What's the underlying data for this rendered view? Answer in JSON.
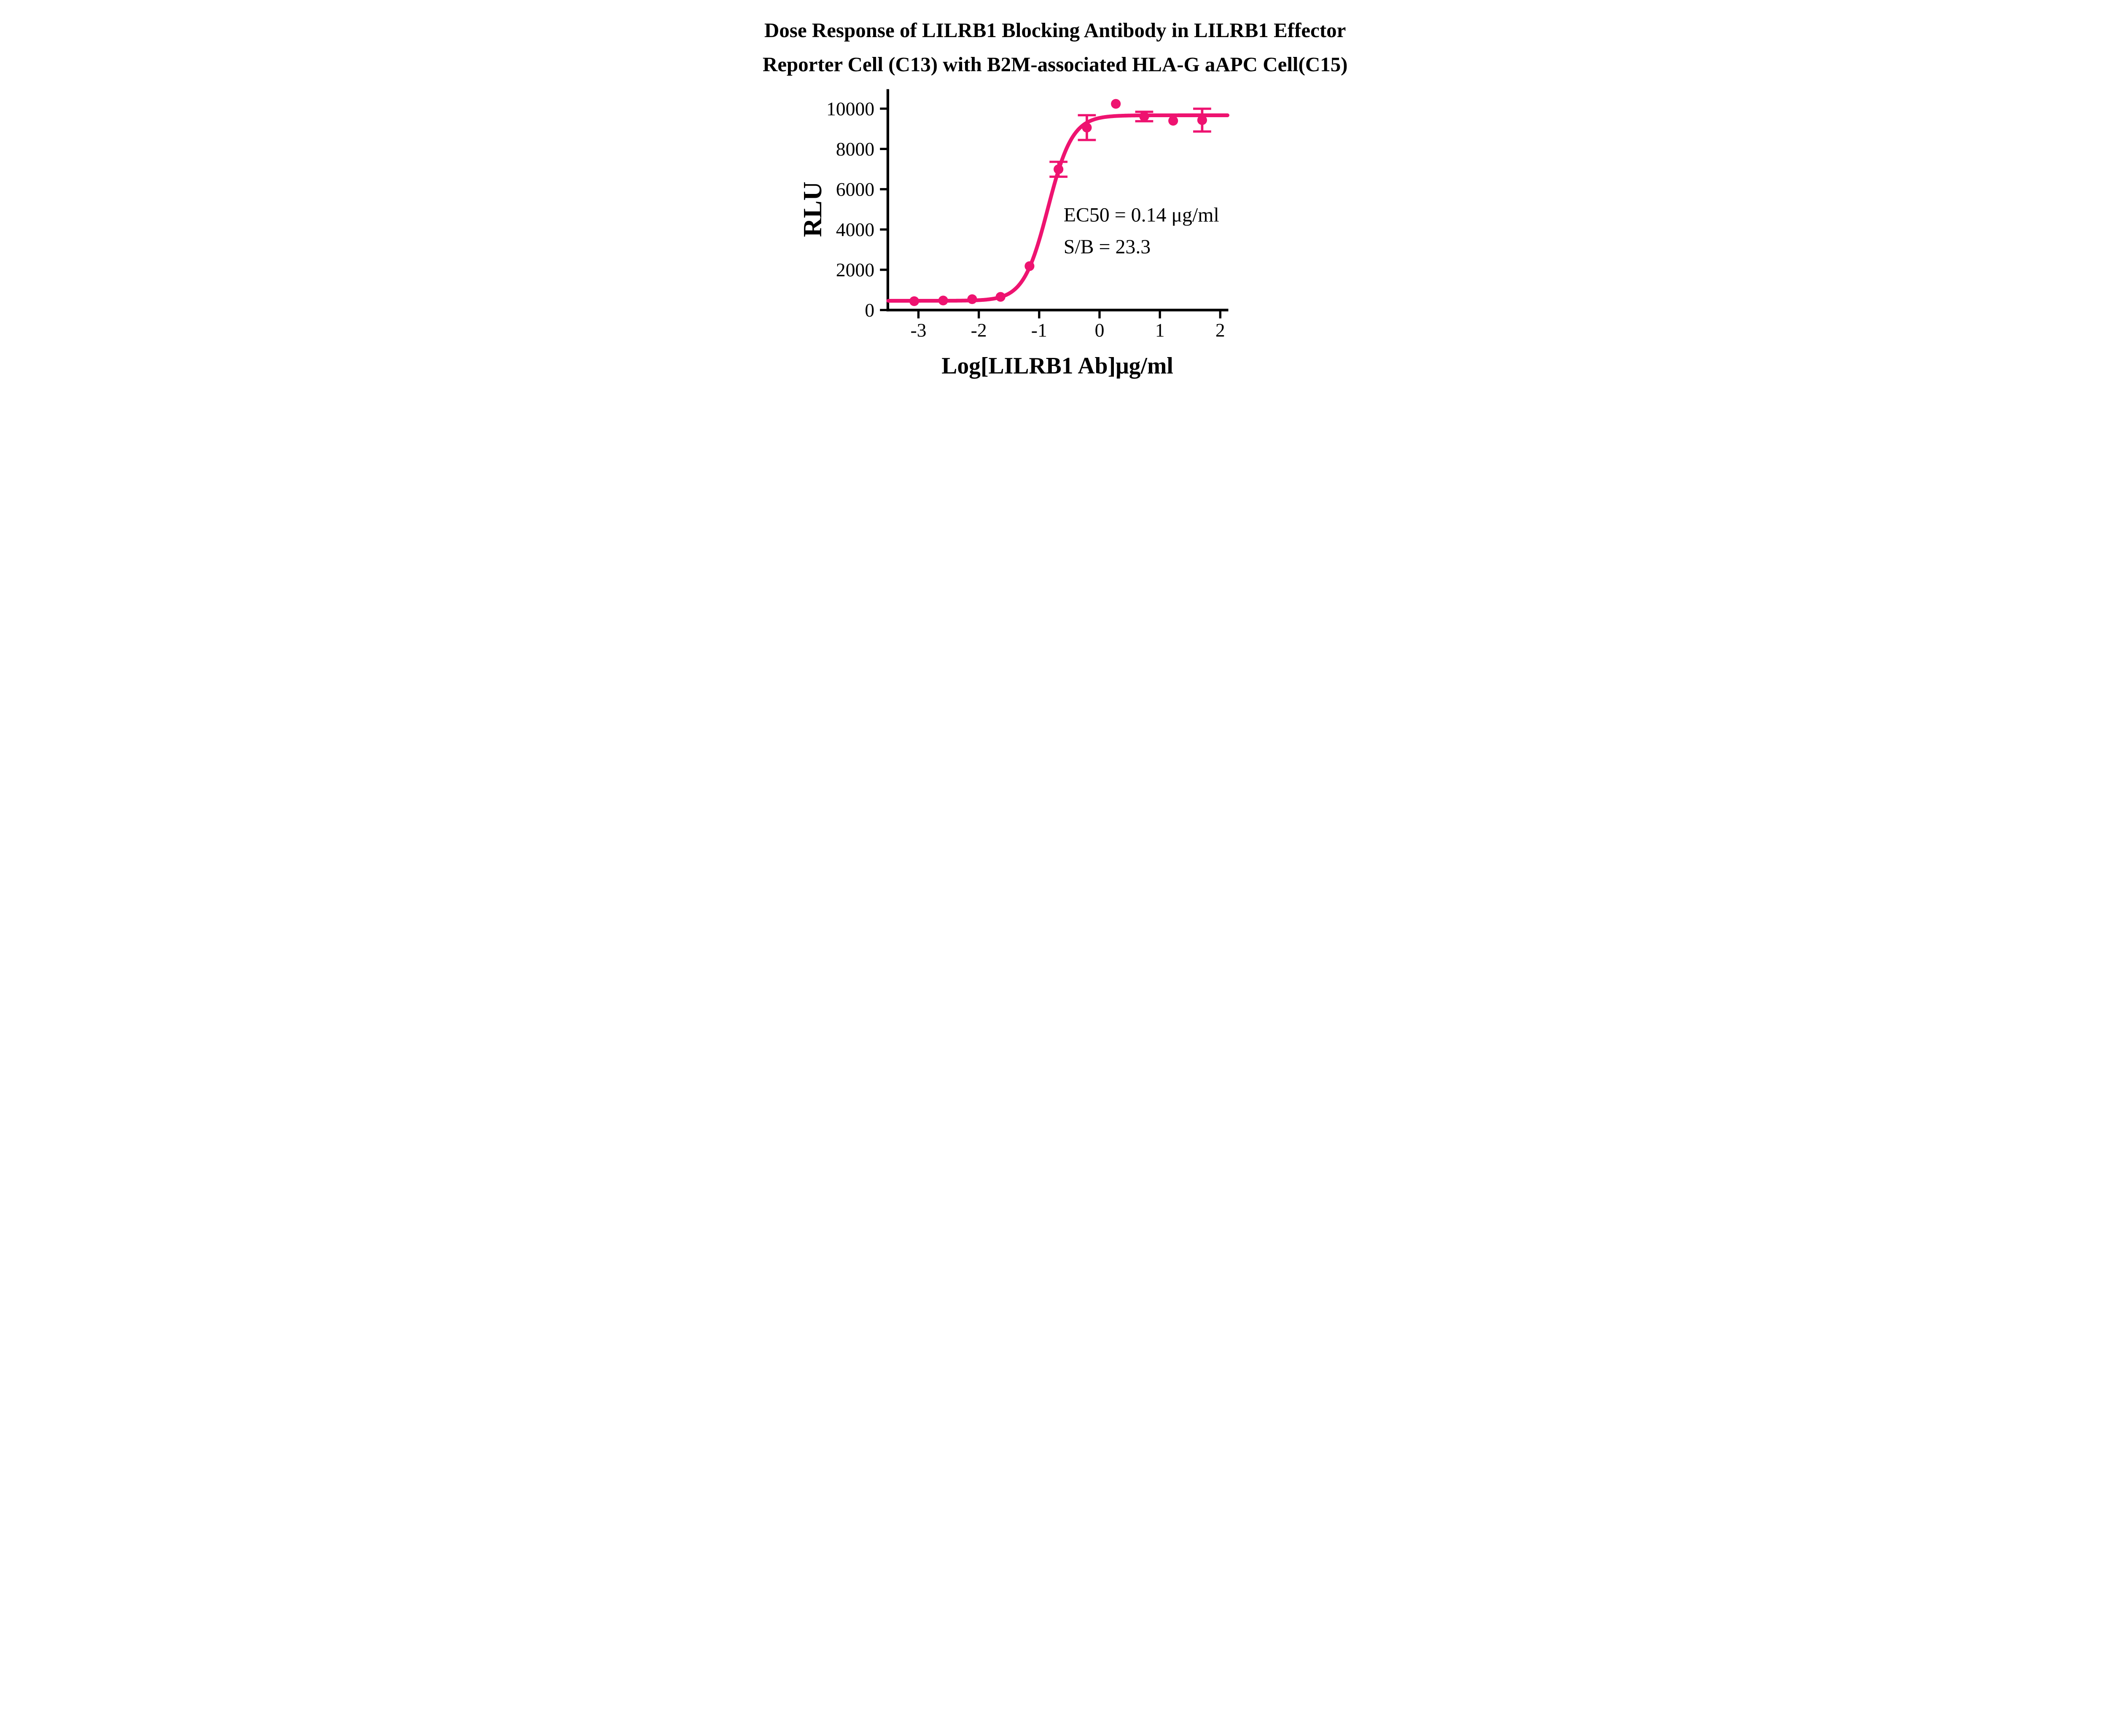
{
  "chart_data": {
    "type": "scatter",
    "title": "Dose Response of LILRB1 Blocking Antibody in LILRB1 Effector Reporter Cell (C13) with B2M-associated HLA-G aAPC Cell(C15)",
    "title_line1": "Dose Response of LILRB1 Blocking Antibody in LILRB1 Effector",
    "title_line2": "Reporter Cell (C13) with B2M-associated HLA-G aAPC Cell(C15)",
    "xlabel": "Log[LILRB1 Ab]μg/ml",
    "ylabel": "RLU",
    "xlim": [
      -3.5,
      2.12
    ],
    "ylim": [
      0,
      10500
    ],
    "xticks": [
      -3,
      -2,
      -1,
      0,
      1,
      2
    ],
    "yticks": [
      0,
      2000,
      4000,
      6000,
      8000,
      10000
    ],
    "grid": false,
    "legend": "none",
    "series_color": "#EE1370",
    "axis_color": "#000000",
    "points": [
      {
        "x": -3.07,
        "y": 440,
        "err": null
      },
      {
        "x": -2.59,
        "y": 475,
        "err": null
      },
      {
        "x": -2.11,
        "y": 540,
        "err": null
      },
      {
        "x": -1.64,
        "y": 655,
        "err": null
      },
      {
        "x": -1.16,
        "y": 2180,
        "err": null
      },
      {
        "x": -0.68,
        "y": 6990,
        "err": 370
      },
      {
        "x": -0.21,
        "y": 9060,
        "err": 615
      },
      {
        "x": 0.27,
        "y": 10240,
        "err": null
      },
      {
        "x": 0.74,
        "y": 9610,
        "err": 235
      },
      {
        "x": 1.22,
        "y": 9400,
        "err": null
      },
      {
        "x": 1.7,
        "y": 9430,
        "err": 565
      }
    ],
    "fit_curve": {
      "model": "4-parameter logistic",
      "bottom": 460,
      "top": 9670,
      "log_ec50": -0.854,
      "hill_slope": 2.15
    },
    "annotations": {
      "ec50": "EC50 = 0.14 μg/ml",
      "s_b": "S/B = 23.3"
    }
  }
}
